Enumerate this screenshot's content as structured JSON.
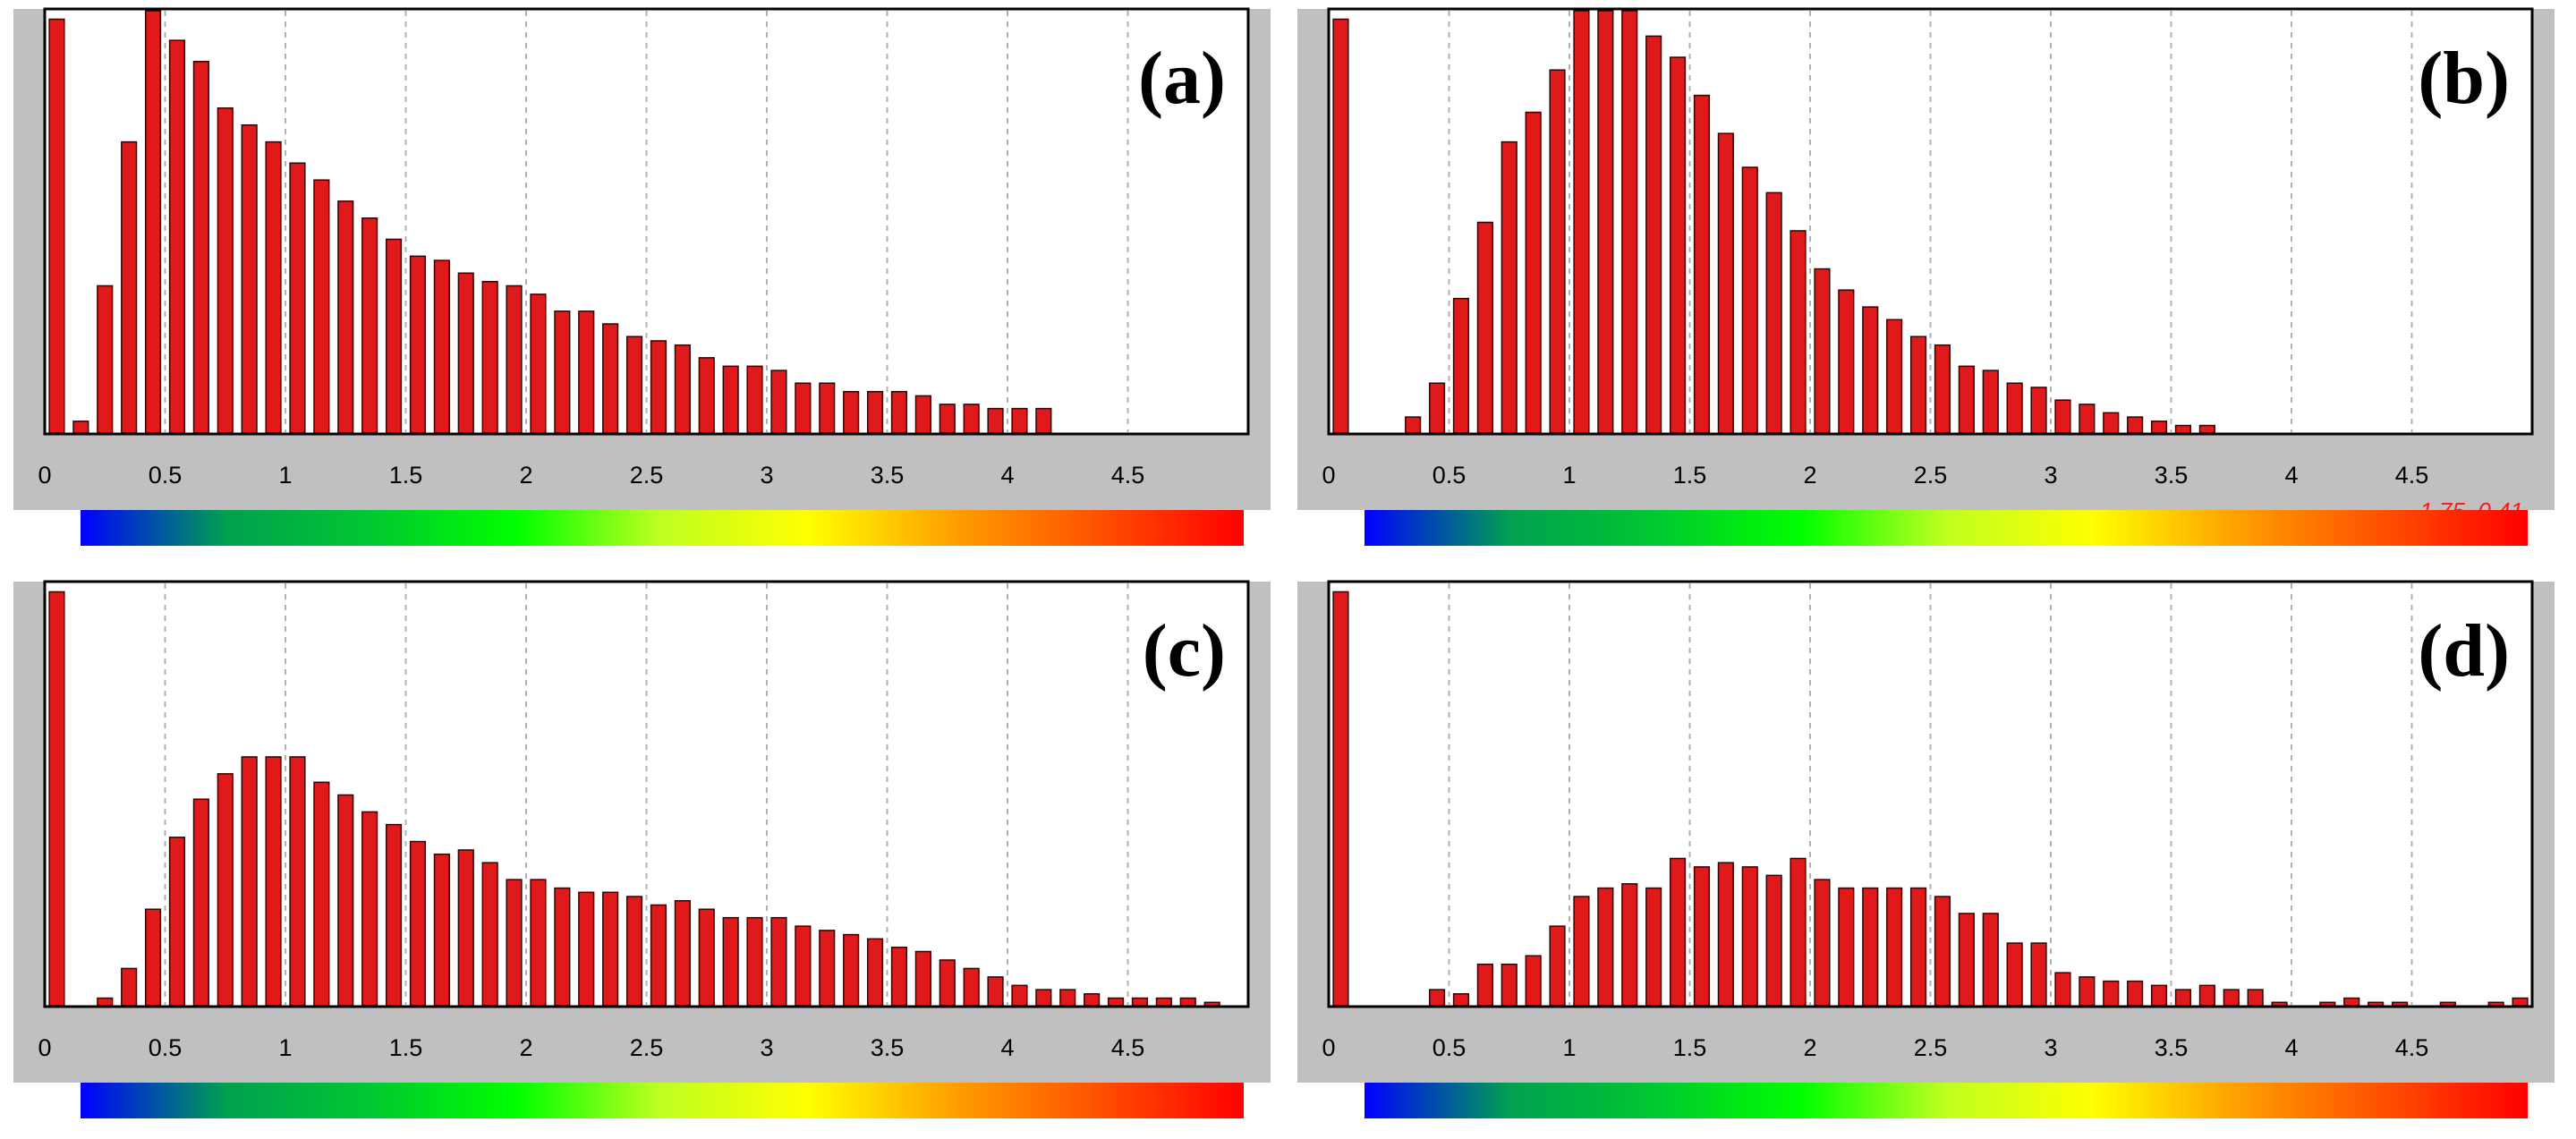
{
  "figure": {
    "colors": {
      "bar_fill": "#e0191b",
      "bar_stroke": "#3a0000",
      "panel_bg": "#c0c0c0",
      "plot_bg": "#ffffff",
      "grid": "#b0b0b0",
      "readout": "#ff1a1a"
    },
    "colorbar_stops": [
      "#0000ff",
      "#00a050",
      "#00c830",
      "#00ff00",
      "#c0ff20",
      "#ffff00",
      "#ffa000",
      "#ff5000",
      "#ff0000"
    ]
  },
  "chart_data": [
    {
      "type": "bar",
      "panel_label": "(a)",
      "x_ticks": [
        "0",
        "0.5",
        "1",
        "1.5",
        "2",
        "2.5",
        "3",
        "3.5",
        "4",
        "4.5"
      ],
      "xlim": [
        0,
        5
      ],
      "ylim": [
        0,
        100
      ],
      "grid": "vertical dashed",
      "bin_width": 0.1,
      "x": [
        0.05,
        0.15,
        0.25,
        0.35,
        0.45,
        0.55,
        0.65,
        0.75,
        0.85,
        0.95,
        1.05,
        1.15,
        1.25,
        1.35,
        1.45,
        1.55,
        1.65,
        1.75,
        1.85,
        1.95,
        2.05,
        2.15,
        2.25,
        2.35,
        2.45,
        2.55,
        2.65,
        2.75,
        2.85,
        2.95,
        3.05,
        3.15,
        3.25,
        3.35,
        3.45,
        3.55,
        3.65,
        3.75,
        3.85,
        3.95,
        4.05,
        4.15
      ],
      "values": [
        98,
        3,
        35,
        69,
        100,
        93,
        88,
        77,
        73,
        69,
        64,
        60,
        55,
        51,
        46,
        42,
        41,
        38,
        36,
        35,
        33,
        29,
        29,
        26,
        23,
        22,
        21,
        18,
        16,
        16,
        15,
        12,
        12,
        10,
        10,
        10,
        9,
        7,
        7,
        6,
        6,
        6
      ],
      "readout": ""
    },
    {
      "type": "bar",
      "panel_label": "(b)",
      "x_ticks": [
        "0",
        "0.5",
        "1",
        "1.5",
        "2",
        "2.5",
        "3",
        "3.5",
        "4",
        "4.5"
      ],
      "xlim": [
        0,
        5
      ],
      "ylim": [
        0,
        100
      ],
      "grid": "vertical dashed",
      "bin_width": 0.1,
      "x": [
        0.05,
        0.35,
        0.45,
        0.55,
        0.65,
        0.75,
        0.85,
        0.95,
        1.05,
        1.15,
        1.25,
        1.35,
        1.45,
        1.55,
        1.65,
        1.75,
        1.85,
        1.95,
        2.05,
        2.15,
        2.25,
        2.35,
        2.45,
        2.55,
        2.65,
        2.75,
        2.85,
        2.95,
        3.05,
        3.15,
        3.25,
        3.35,
        3.45,
        3.55,
        3.65
      ],
      "values": [
        98,
        4,
        12,
        32,
        50,
        69,
        76,
        86,
        100,
        100,
        100,
        94,
        89,
        80,
        71,
        63,
        57,
        48,
        39,
        34,
        30,
        27,
        23,
        21,
        16,
        15,
        12,
        11,
        8,
        7,
        5,
        4,
        3,
        2,
        2
      ],
      "readout": "1.75, 0.41"
    },
    {
      "type": "bar",
      "panel_label": "(c)",
      "x_ticks": [
        "0",
        "0.5",
        "1",
        "1.5",
        "2",
        "2.5",
        "3",
        "3.5",
        "4",
        "4.5"
      ],
      "xlim": [
        0,
        5
      ],
      "ylim": [
        0,
        100
      ],
      "grid": "vertical dashed",
      "bin_width": 0.1,
      "x": [
        0.05,
        0.25,
        0.35,
        0.45,
        0.55,
        0.65,
        0.75,
        0.85,
        0.95,
        1.05,
        1.15,
        1.25,
        1.35,
        1.45,
        1.55,
        1.65,
        1.75,
        1.85,
        1.95,
        2.05,
        2.15,
        2.25,
        2.35,
        2.45,
        2.55,
        2.65,
        2.75,
        2.85,
        2.95,
        3.05,
        3.15,
        3.25,
        3.35,
        3.45,
        3.55,
        3.65,
        3.75,
        3.85,
        3.95,
        4.05,
        4.15,
        4.25,
        4.35,
        4.45,
        4.55,
        4.65,
        4.75,
        4.85
      ],
      "values": [
        98,
        2,
        9,
        23,
        40,
        49,
        55,
        59,
        59,
        59,
        53,
        50,
        46,
        43,
        39,
        36,
        37,
        34,
        30,
        30,
        28,
        27,
        27,
        26,
        24,
        25,
        23,
        21,
        21,
        21,
        19,
        18,
        17,
        16,
        14,
        13,
        11,
        9,
        7,
        5,
        4,
        4,
        3,
        2,
        2,
        2,
        2,
        1
      ],
      "readout": ""
    },
    {
      "type": "bar",
      "panel_label": "(d)",
      "x_ticks": [
        "0",
        "0.5",
        "1",
        "1.5",
        "2",
        "2.5",
        "3",
        "3.5",
        "4",
        "4.5"
      ],
      "xlim": [
        0,
        5
      ],
      "ylim": [
        0,
        100
      ],
      "grid": "vertical dashed",
      "bin_width": 0.1,
      "x": [
        0.05,
        0.45,
        0.55,
        0.65,
        0.75,
        0.85,
        0.95,
        1.05,
        1.15,
        1.25,
        1.35,
        1.45,
        1.55,
        1.65,
        1.75,
        1.85,
        1.95,
        2.05,
        2.15,
        2.25,
        2.35,
        2.45,
        2.55,
        2.65,
        2.75,
        2.85,
        2.95,
        3.05,
        3.15,
        3.25,
        3.35,
        3.45,
        3.55,
        3.65,
        3.75,
        3.85,
        3.95,
        4.05,
        4.15,
        4.25,
        4.35,
        4.45,
        4.55,
        4.65,
        4.75,
        4.85,
        4.95
      ],
      "values": [
        98,
        4,
        3,
        10,
        10,
        12,
        19,
        26,
        28,
        29,
        28,
        35,
        33,
        34,
        33,
        31,
        35,
        30,
        28,
        28,
        28,
        28,
        26,
        22,
        22,
        15,
        15,
        8,
        7,
        6,
        6,
        5,
        4,
        5,
        4,
        4,
        1,
        0,
        1,
        2,
        1,
        1,
        0,
        1,
        0,
        1,
        2
      ],
      "readout": ""
    }
  ]
}
